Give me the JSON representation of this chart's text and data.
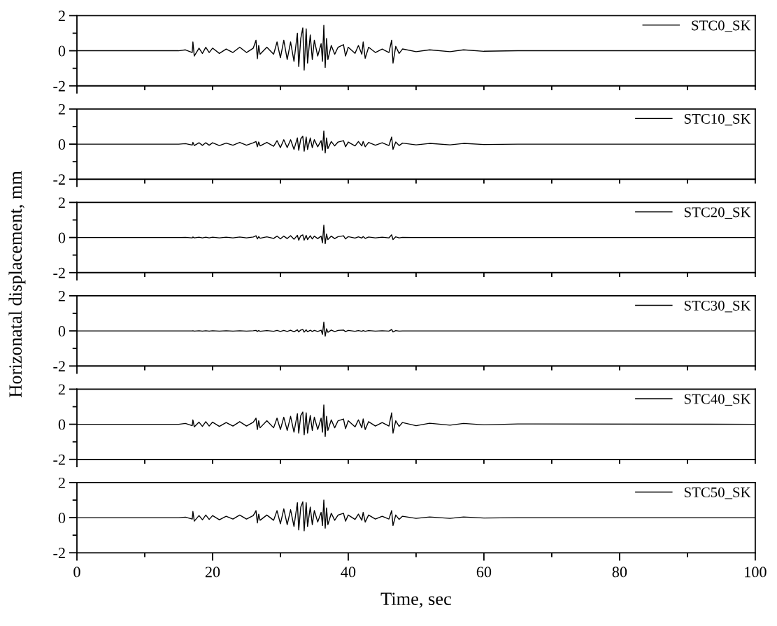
{
  "chart_data": [
    {
      "type": "line",
      "ylabel": "Horizonatal displacement, mm",
      "xlim": [
        0,
        100
      ],
      "xticks": [
        0,
        {
          "value": 10,
          "label": null
        },
        {
          "value": 20,
          "label": null
        },
        {
          "value": 30,
          "label": null
        },
        {
          "value": 40,
          "label": null
        },
        {
          "value": 50,
          "label": null
        },
        {
          "value": 60,
          "label": null
        },
        {
          "value": 70,
          "label": null
        },
        {
          "value": 80,
          "label": null
        },
        {
          "value": 90,
          "label": null
        },
        {
          "value": 100,
          "label": null
        }
      ],
      "ylim": [
        -2,
        2
      ],
      "yticks": [
        -2,
        0,
        2
      ],
      "tick_labels": "y",
      "legend": "top right",
      "grid": false,
      "series": [
        {
          "name": "STC0_SK",
          "color": "#000000",
          "x": [
            0,
            15,
            16,
            17,
            17.1,
            17.3,
            18,
            18.5,
            19,
            19.5,
            20,
            21,
            22,
            23,
            24,
            25,
            26,
            26.4,
            26.6,
            26.8,
            27,
            28,
            29,
            29.5,
            30,
            30.5,
            31,
            31.5,
            32,
            32.5,
            32.7,
            33,
            33.3,
            33.5,
            33.8,
            34,
            34.4,
            34.7,
            35,
            35.5,
            36,
            36.2,
            36.4,
            36.6,
            36.8,
            37,
            37.5,
            38,
            38.5,
            39.3,
            39.6,
            40,
            41,
            41.5,
            42,
            42.2,
            42.5,
            43,
            44,
            45,
            46,
            46.4,
            46.6,
            47,
            47.5,
            48,
            50,
            52,
            55,
            57,
            60,
            65,
            100
          ],
          "values": [
            0,
            0,
            0.05,
            -0.1,
            0.5,
            -0.3,
            0.15,
            -0.15,
            0.2,
            -0.1,
            0.15,
            -0.15,
            0.1,
            -0.1,
            0.2,
            -0.1,
            0.15,
            0.6,
            -0.45,
            0.3,
            -0.2,
            0.2,
            -0.2,
            0.5,
            -0.4,
            0.6,
            -0.5,
            0.5,
            -0.6,
            1.0,
            -0.9,
            0.7,
            1.3,
            -1.1,
            1.25,
            -0.7,
            0.9,
            -0.5,
            0.6,
            -0.3,
            0.4,
            -0.6,
            1.45,
            -0.95,
            0.7,
            -0.5,
            0.3,
            -0.2,
            0.2,
            0.35,
            -0.3,
            0.2,
            -0.15,
            0.3,
            -0.2,
            0.5,
            -0.43,
            0.2,
            -0.1,
            0.1,
            -0.1,
            0.6,
            -0.7,
            0.25,
            -0.15,
            0.1,
            -0.05,
            0.05,
            -0.05,
            0.05,
            -0.03,
            0,
            0
          ]
        }
      ]
    },
    {
      "type": "line",
      "xlim": [
        0,
        100
      ],
      "xticks": [
        0,
        {
          "value": 10,
          "label": null
        },
        {
          "value": 20,
          "label": null
        },
        {
          "value": 30,
          "label": null
        },
        {
          "value": 40,
          "label": null
        },
        {
          "value": 50,
          "label": null
        },
        {
          "value": 60,
          "label": null
        },
        {
          "value": 70,
          "label": null
        },
        {
          "value": 80,
          "label": null
        },
        {
          "value": 90,
          "label": null
        },
        {
          "value": 100,
          "label": null
        }
      ],
      "ylim": [
        -2,
        2
      ],
      "yticks": [
        -2,
        0,
        2
      ],
      "tick_labels": "y",
      "legend": "top right",
      "grid": false,
      "series": [
        {
          "name": "STC10_SK",
          "color": "#000000",
          "x": [
            0,
            15,
            16,
            17,
            17.1,
            17.3,
            18,
            18.5,
            19,
            19.5,
            20,
            21,
            22,
            23,
            24,
            25,
            26,
            26.4,
            26.6,
            26.8,
            27,
            28,
            29,
            29.5,
            30,
            30.5,
            31,
            31.5,
            32,
            32.5,
            32.7,
            33,
            33.3,
            33.5,
            33.8,
            34,
            34.4,
            34.7,
            35,
            35.5,
            36,
            36.2,
            36.4,
            36.6,
            36.8,
            37,
            37.5,
            38,
            38.5,
            39.3,
            39.6,
            40,
            41,
            41.5,
            42,
            42.2,
            42.5,
            43,
            44,
            45,
            46,
            46.4,
            46.6,
            47,
            47.5,
            48,
            50,
            52,
            55,
            57,
            60,
            65,
            100
          ],
          "values": [
            0,
            0,
            0.03,
            -0.05,
            0.1,
            -0.08,
            0.08,
            -0.07,
            0.08,
            -0.06,
            0.08,
            -0.08,
            0.06,
            -0.06,
            0.1,
            -0.06,
            0.08,
            0.15,
            -0.15,
            0.12,
            -0.1,
            0.1,
            -0.12,
            0.2,
            -0.2,
            0.25,
            -0.2,
            0.25,
            -0.3,
            0.35,
            -0.35,
            0.3,
            0.45,
            -0.4,
            0.4,
            -0.3,
            0.35,
            -0.2,
            0.25,
            -0.15,
            0.2,
            -0.35,
            0.75,
            -0.5,
            0.35,
            -0.25,
            0.15,
            -0.1,
            0.12,
            0.2,
            -0.15,
            0.12,
            -0.1,
            0.15,
            -0.1,
            0.15,
            -0.15,
            0.1,
            -0.06,
            0.08,
            -0.08,
            0.4,
            -0.3,
            0.12,
            -0.08,
            0.06,
            -0.04,
            0.04,
            -0.04,
            0.04,
            -0.02,
            0,
            0
          ]
        }
      ]
    },
    {
      "type": "line",
      "xlim": [
        0,
        100
      ],
      "xticks": [
        0,
        {
          "value": 10,
          "label": null
        },
        {
          "value": 20,
          "label": null
        },
        {
          "value": 30,
          "label": null
        },
        {
          "value": 40,
          "label": null
        },
        {
          "value": 50,
          "label": null
        },
        {
          "value": 60,
          "label": null
        },
        {
          "value": 70,
          "label": null
        },
        {
          "value": 80,
          "label": null
        },
        {
          "value": 90,
          "label": null
        },
        {
          "value": 100,
          "label": null
        }
      ],
      "ylim": [
        -2,
        2
      ],
      "yticks": [
        -2,
        0,
        2
      ],
      "tick_labels": "y",
      "legend": "top right",
      "grid": false,
      "series": [
        {
          "name": "STC20_SK",
          "color": "#000000",
          "x": [
            0,
            15,
            16,
            17,
            17.1,
            17.3,
            18,
            18.5,
            19,
            19.5,
            20,
            21,
            22,
            23,
            24,
            25,
            26,
            26.4,
            26.6,
            26.8,
            27,
            28,
            29,
            29.5,
            30,
            30.5,
            31,
            31.5,
            32,
            32.5,
            32.7,
            33,
            33.3,
            33.5,
            33.8,
            34,
            34.4,
            34.7,
            35,
            35.5,
            36,
            36.2,
            36.4,
            36.6,
            36.8,
            37,
            37.5,
            38,
            38.5,
            39.3,
            39.6,
            40,
            41,
            41.5,
            42,
            42.2,
            42.5,
            43,
            44,
            45,
            46,
            46.4,
            46.6,
            47,
            47.5,
            48,
            50,
            52,
            55,
            57,
            60,
            65,
            100
          ],
          "values": [
            0,
            0,
            0.01,
            -0.02,
            0.03,
            -0.02,
            0.02,
            -0.02,
            0.02,
            -0.02,
            0.02,
            -0.02,
            0.02,
            -0.02,
            0.03,
            -0.02,
            0.03,
            0.1,
            -0.08,
            0.05,
            -0.04,
            0.04,
            -0.05,
            0.08,
            -0.08,
            0.08,
            -0.06,
            0.1,
            -0.1,
            0.12,
            -0.15,
            0.1,
            0.15,
            -0.15,
            0.12,
            -0.12,
            0.1,
            -0.08,
            0.08,
            -0.06,
            0.08,
            -0.3,
            0.7,
            -0.35,
            0.2,
            -0.12,
            0.08,
            -0.06,
            0.05,
            0.1,
            -0.08,
            0.05,
            -0.03,
            0.04,
            -0.03,
            0.05,
            -0.05,
            0.03,
            -0.02,
            0.02,
            -0.02,
            0.15,
            -0.12,
            0.04,
            -0.02,
            0.01,
            0,
            0,
            0,
            0,
            0,
            0,
            0
          ]
        }
      ]
    },
    {
      "type": "line",
      "xlim": [
        0,
        100
      ],
      "xticks": [
        0,
        {
          "value": 10,
          "label": null
        },
        {
          "value": 20,
          "label": null
        },
        {
          "value": 30,
          "label": null
        },
        {
          "value": 40,
          "label": null
        },
        {
          "value": 50,
          "label": null
        },
        {
          "value": 60,
          "label": null
        },
        {
          "value": 70,
          "label": null
        },
        {
          "value": 80,
          "label": null
        },
        {
          "value": 90,
          "label": null
        },
        {
          "value": 100,
          "label": null
        }
      ],
      "ylim": [
        -2,
        2
      ],
      "yticks": [
        -2,
        0,
        2
      ],
      "tick_labels": "y",
      "legend": "top right",
      "grid": false,
      "series": [
        {
          "name": "STC30_SK",
          "color": "#000000",
          "x": [
            0,
            15,
            16,
            17,
            17.1,
            17.3,
            18,
            18.5,
            19,
            19.5,
            20,
            21,
            22,
            23,
            24,
            25,
            26,
            26.4,
            26.6,
            26.8,
            27,
            28,
            29,
            29.5,
            30,
            30.5,
            31,
            31.5,
            32,
            32.5,
            32.7,
            33,
            33.3,
            33.5,
            33.8,
            34,
            34.4,
            34.7,
            35,
            35.5,
            36,
            36.2,
            36.4,
            36.6,
            36.8,
            37,
            37.5,
            38,
            38.5,
            39.3,
            39.6,
            40,
            41,
            41.5,
            42,
            42.2,
            42.5,
            43,
            44,
            45,
            46,
            46.4,
            46.6,
            47,
            47.5,
            48,
            50,
            52,
            55,
            57,
            60,
            65,
            100
          ],
          "values": [
            0,
            0,
            0,
            0,
            0.01,
            -0.01,
            0.01,
            -0.01,
            0.01,
            -0.01,
            0.01,
            -0.01,
            0.01,
            -0.01,
            0.01,
            -0.01,
            0.01,
            0.03,
            -0.03,
            0.02,
            -0.02,
            0.02,
            -0.02,
            0.03,
            -0.03,
            0.03,
            -0.03,
            0.04,
            -0.05,
            0.06,
            -0.06,
            0.05,
            0.08,
            -0.07,
            0.06,
            -0.05,
            0.04,
            -0.03,
            0.03,
            -0.03,
            0.04,
            -0.2,
            0.5,
            -0.3,
            0.12,
            -0.08,
            0.05,
            -0.04,
            0.03,
            0.05,
            -0.04,
            0.03,
            -0.02,
            0.02,
            -0.02,
            0.02,
            -0.02,
            0.02,
            -0.01,
            0.01,
            -0.01,
            0.08,
            -0.06,
            0.02,
            -0.01,
            0,
            0,
            0,
            0,
            0,
            0,
            0,
            0
          ]
        }
      ]
    },
    {
      "type": "line",
      "xlim": [
        0,
        100
      ],
      "xticks": [
        0,
        {
          "value": 10,
          "label": null
        },
        {
          "value": 20,
          "label": null
        },
        {
          "value": 30,
          "label": null
        },
        {
          "value": 40,
          "label": null
        },
        {
          "value": 50,
          "label": null
        },
        {
          "value": 60,
          "label": null
        },
        {
          "value": 70,
          "label": null
        },
        {
          "value": 80,
          "label": null
        },
        {
          "value": 90,
          "label": null
        },
        {
          "value": 100,
          "label": null
        }
      ],
      "ylim": [
        -2,
        2
      ],
      "yticks": [
        -2,
        0,
        2
      ],
      "tick_labels": "y",
      "legend": "top right",
      "grid": false,
      "series": [
        {
          "name": "STC40_SK",
          "color": "#000000",
          "x": [
            0,
            15,
            16,
            17,
            17.1,
            17.3,
            18,
            18.5,
            19,
            19.5,
            20,
            21,
            22,
            23,
            24,
            25,
            26,
            26.4,
            26.6,
            26.8,
            27,
            28,
            29,
            29.5,
            30,
            30.5,
            31,
            31.5,
            32,
            32.5,
            32.7,
            33,
            33.3,
            33.5,
            33.8,
            34,
            34.4,
            34.7,
            35,
            35.5,
            36,
            36.2,
            36.4,
            36.6,
            36.8,
            37,
            37.5,
            38,
            38.5,
            39.3,
            39.6,
            40,
            41,
            41.5,
            42,
            42.2,
            42.5,
            43,
            44,
            45,
            46,
            46.4,
            46.6,
            47,
            47.5,
            48,
            50,
            52,
            55,
            57,
            60,
            65,
            100
          ],
          "values": [
            0,
            0,
            0.05,
            -0.08,
            0.25,
            -0.15,
            0.12,
            -0.12,
            0.15,
            -0.1,
            0.12,
            -0.12,
            0.1,
            -0.1,
            0.15,
            -0.1,
            0.12,
            0.35,
            -0.3,
            0.2,
            -0.2,
            0.2,
            -0.2,
            0.35,
            -0.3,
            0.4,
            -0.35,
            0.45,
            -0.45,
            0.6,
            -0.5,
            0.5,
            0.7,
            -0.6,
            0.65,
            -0.5,
            0.5,
            -0.35,
            0.4,
            -0.3,
            0.35,
            -0.45,
            1.1,
            -0.7,
            0.45,
            -0.35,
            0.25,
            -0.2,
            0.2,
            0.3,
            -0.25,
            0.2,
            -0.15,
            0.25,
            -0.2,
            0.3,
            -0.3,
            0.15,
            -0.1,
            0.1,
            -0.1,
            0.65,
            -0.5,
            0.2,
            -0.12,
            0.1,
            -0.08,
            0.06,
            -0.05,
            0.05,
            -0.03,
            0.02,
            0
          ]
        }
      ]
    },
    {
      "type": "line",
      "xlabel": "Time, sec",
      "xlim": [
        0,
        100
      ],
      "xticks": [
        0,
        {
          "value": 10,
          "label": null
        },
        20,
        {
          "value": 30,
          "label": null
        },
        40,
        {
          "value": 50,
          "label": null
        },
        60,
        {
          "value": 70,
          "label": null
        },
        80,
        {
          "value": 90,
          "label": null
        },
        100
      ],
      "ylim": [
        -2,
        2
      ],
      "yticks": [
        -2,
        0,
        2
      ],
      "legend": "top right",
      "grid": false,
      "series": [
        {
          "name": "STC50_SK",
          "color": "#000000",
          "x": [
            0,
            15,
            16,
            17,
            17.1,
            17.3,
            18,
            18.5,
            19,
            19.5,
            20,
            21,
            22,
            23,
            24,
            25,
            26,
            26.4,
            26.6,
            26.8,
            27,
            28,
            29,
            29.5,
            30,
            30.5,
            31,
            31.5,
            32,
            32.5,
            32.7,
            33,
            33.3,
            33.5,
            33.8,
            34,
            34.4,
            34.7,
            35,
            35.5,
            36,
            36.2,
            36.4,
            36.6,
            36.8,
            37,
            37.5,
            38,
            38.5,
            39.3,
            39.6,
            40,
            41,
            41.5,
            42,
            42.2,
            42.5,
            43,
            44,
            45,
            46,
            46.4,
            46.6,
            47,
            47.5,
            48,
            50,
            52,
            55,
            57,
            60,
            65,
            100
          ],
          "values": [
            0,
            0,
            0.03,
            -0.08,
            0.35,
            -0.2,
            0.12,
            -0.12,
            0.15,
            -0.1,
            0.12,
            -0.12,
            0.08,
            -0.08,
            0.15,
            -0.08,
            0.12,
            0.4,
            -0.3,
            0.2,
            -0.15,
            0.15,
            -0.15,
            0.4,
            -0.35,
            0.5,
            -0.4,
            0.45,
            -0.5,
            0.85,
            -0.7,
            0.6,
            0.9,
            -0.75,
            0.85,
            -0.5,
            0.6,
            -0.4,
            0.4,
            -0.25,
            0.3,
            -0.45,
            1.0,
            -0.6,
            0.55,
            -0.4,
            0.25,
            -0.15,
            0.15,
            0.25,
            -0.2,
            0.15,
            -0.1,
            0.2,
            -0.15,
            0.3,
            -0.25,
            0.15,
            -0.08,
            0.08,
            -0.08,
            0.4,
            -0.45,
            0.15,
            -0.1,
            0.08,
            -0.04,
            0.04,
            -0.04,
            0.04,
            -0.02,
            0,
            0
          ]
        }
      ]
    }
  ]
}
